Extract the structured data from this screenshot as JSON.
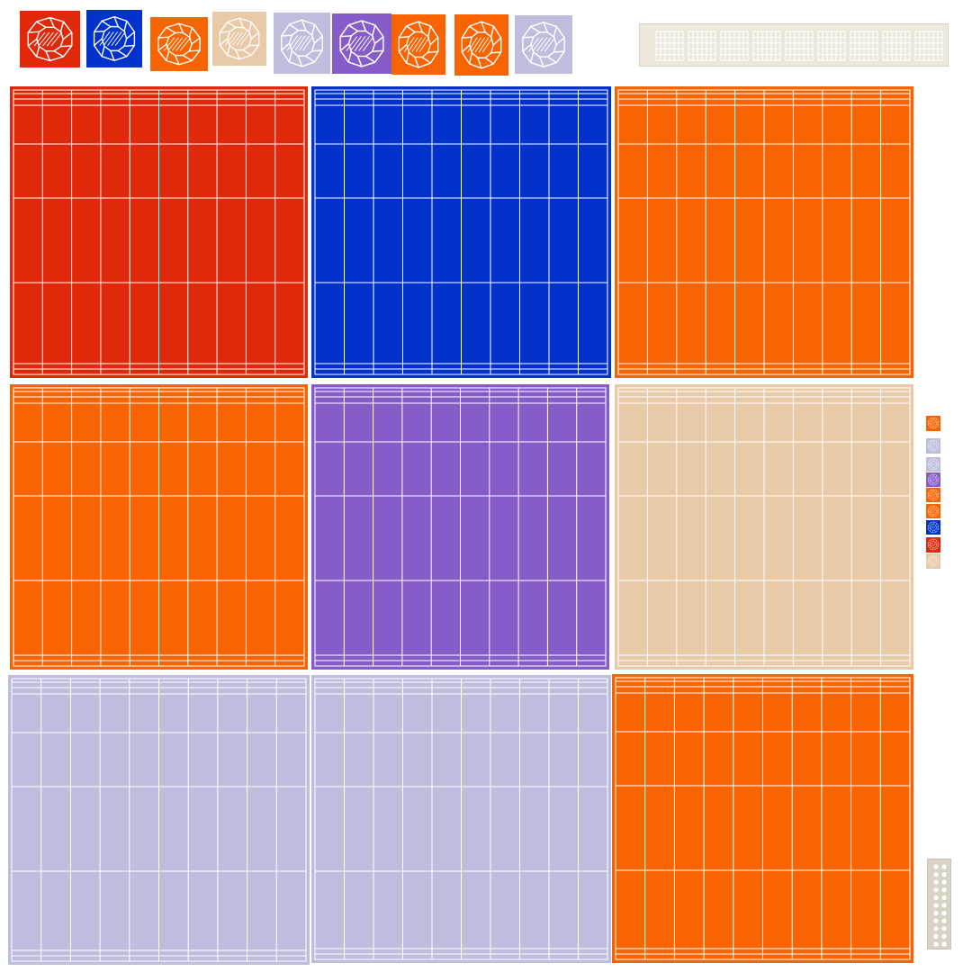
{
  "colors": {
    "red": "#e0290a",
    "blue": "#0132cc",
    "orange": "#f86402",
    "tan": "#e8c9a8",
    "lavender": "#bdbedd",
    "purple": "#855cc8",
    "line": "#ffffff",
    "strip_bg": "#ece8dc",
    "dots_bg": "#d9d3c6"
  },
  "top_icons": [
    {
      "color": "red",
      "icon": "gem-icon"
    },
    {
      "color": "blue",
      "icon": "gem-icon"
    },
    {
      "color": "orange",
      "icon": "gem-icon"
    },
    {
      "color": "tan",
      "icon": "gem-icon"
    },
    {
      "color": "lavender",
      "icon": "gem-icon"
    },
    {
      "color": "purple",
      "icon": "gem-icon"
    },
    {
      "color": "orange",
      "icon": "gem-icon"
    },
    {
      "color": "orange",
      "icon": "gem-icon"
    },
    {
      "color": "lavender",
      "icon": "gem-icon"
    }
  ],
  "panels": [
    {
      "color": "red"
    },
    {
      "color": "blue"
    },
    {
      "color": "orange"
    },
    {
      "color": "orange"
    },
    {
      "color": "purple"
    },
    {
      "color": "tan"
    },
    {
      "color": "lavender"
    },
    {
      "color": "lavender"
    },
    {
      "color": "orange"
    }
  ],
  "side_icons": [
    {
      "color": "orange"
    },
    {
      "color": "lavender"
    },
    {
      "color": "lavender"
    },
    {
      "color": "purple"
    },
    {
      "color": "orange"
    },
    {
      "color": "orange"
    },
    {
      "color": "blue"
    },
    {
      "color": "red"
    },
    {
      "color": "tan"
    }
  ]
}
